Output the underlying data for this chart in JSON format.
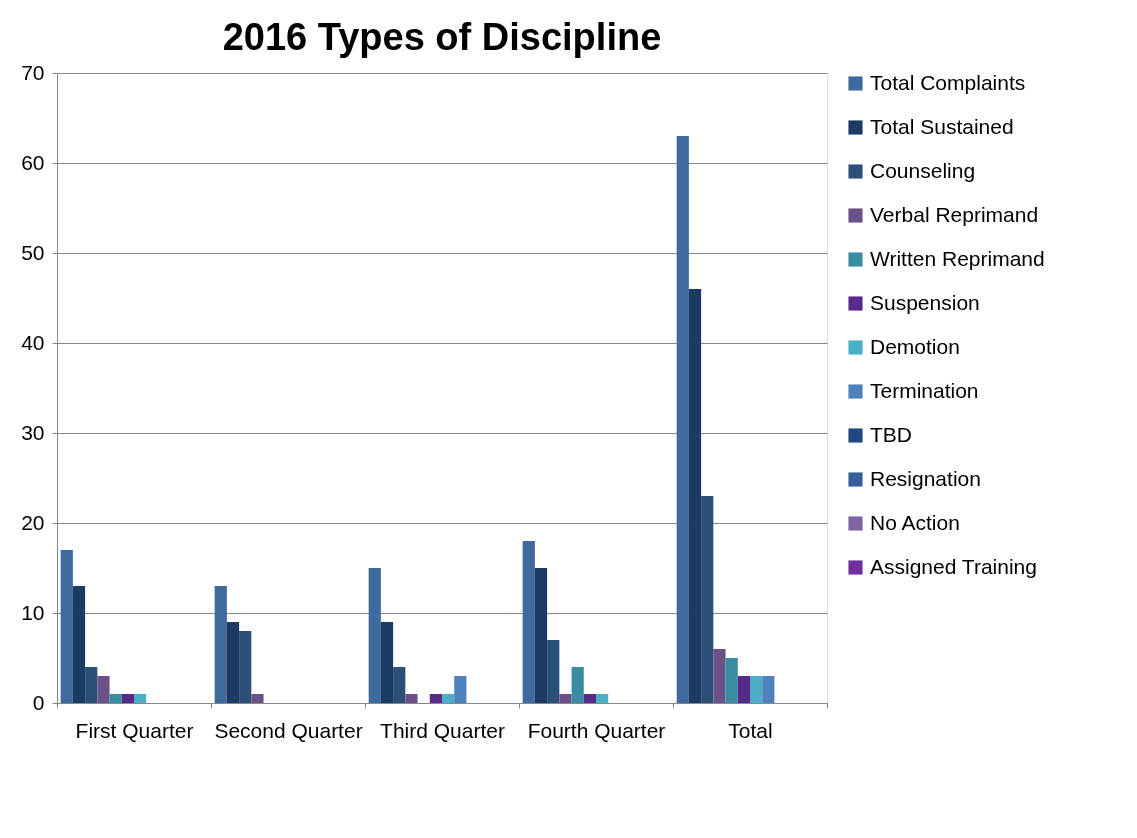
{
  "chart_data": {
    "type": "bar",
    "title": "2016 Types of Discipline",
    "categories": [
      "First Quarter",
      "Second Quarter",
      "Third Quarter",
      "Fourth Quarter",
      "Total"
    ],
    "series": [
      {
        "name": "Total Complaints",
        "color": "#3f6a9e",
        "values": [
          17,
          13,
          15,
          18,
          63
        ]
      },
      {
        "name": "Total Sustained",
        "color": "#1b3a64",
        "values": [
          13,
          9,
          9,
          15,
          46
        ]
      },
      {
        "name": "Counseling",
        "color": "#2c4f7a",
        "values": [
          4,
          8,
          4,
          7,
          23
        ]
      },
      {
        "name": "Verbal Reprimand",
        "color": "#6c5189",
        "values": [
          3,
          1,
          1,
          1,
          6
        ]
      },
      {
        "name": "Written Reprimand",
        "color": "#3a8ca3",
        "values": [
          1,
          0,
          0,
          4,
          5
        ]
      },
      {
        "name": "Suspension",
        "color": "#5a2a8a",
        "values": [
          1,
          0,
          1,
          1,
          3
        ]
      },
      {
        "name": "Demotion",
        "color": "#4bafc8",
        "values": [
          1,
          0,
          1,
          1,
          3
        ]
      },
      {
        "name": "Termination",
        "color": "#4f81bd",
        "values": [
          0,
          0,
          3,
          0,
          3
        ]
      },
      {
        "name": "TBD",
        "color": "#1f4980",
        "values": [
          0,
          0,
          0,
          0,
          0
        ]
      },
      {
        "name": "Resignation",
        "color": "#35619a",
        "values": [
          0,
          0,
          0,
          0,
          0
        ]
      },
      {
        "name": "No Action",
        "color": "#8064a2",
        "values": [
          0,
          0,
          0,
          0,
          0
        ]
      },
      {
        "name": "Assigned Training",
        "color": "#7030a0",
        "values": [
          0,
          0,
          0,
          0,
          0
        ]
      }
    ],
    "ylim": [
      0,
      70
    ],
    "yticks": [
      0,
      10,
      20,
      30,
      40,
      50,
      60,
      70
    ],
    "grid": "y",
    "legend": "right"
  }
}
